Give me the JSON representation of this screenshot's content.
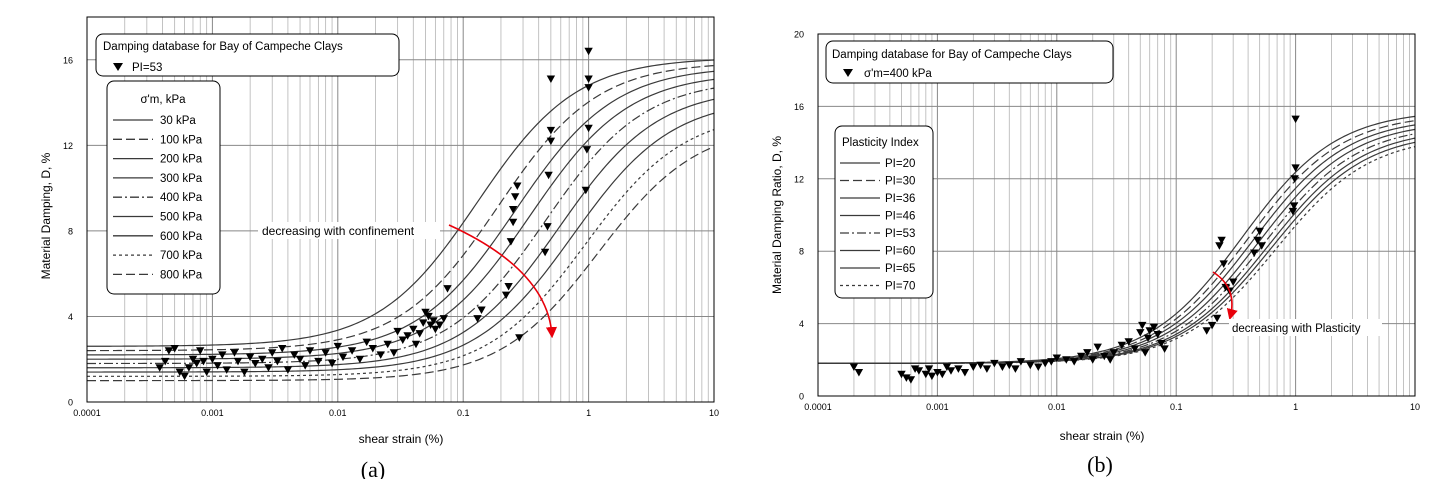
{
  "chart_data": [
    {
      "type": "line",
      "panel_label": "(a)",
      "xlabel": "shear strain (%)",
      "ylabel": "Material Damping, D, %",
      "x_scale": "log",
      "xlim": [
        0.0001,
        10
      ],
      "ylim": [
        0,
        18
      ],
      "x_ticks": [
        0.0001,
        0.001,
        0.01,
        0.1,
        1,
        10
      ],
      "x_tick_labels": [
        "0.0001",
        "0.001",
        "0.01",
        "0.1",
        "1",
        "10"
      ],
      "y_ticks": [
        0,
        4,
        8,
        12,
        16
      ],
      "y_tick_labels": [
        "0",
        "4",
        "8",
        "12",
        "16"
      ],
      "grid": true,
      "legend_title": "Damping database for Bay of Campeche Clays",
      "data_legend": "PI=53",
      "curve_legend_title": "σ'm, kPa",
      "annotation": "decreasing with confinement",
      "series": [
        {
          "name": "30 kPa",
          "dash": "solid",
          "dmin": 2.6,
          "gamma_r": 0.13,
          "dmax": 16.1
        },
        {
          "name": "100 kPa",
          "dash": "long",
          "dmin": 2.4,
          "gamma_r": 0.19,
          "dmax": 15.9
        },
        {
          "name": "200 kPa",
          "dash": "solid",
          "dmin": 2.2,
          "gamma_r": 0.26,
          "dmax": 15.7
        },
        {
          "name": "300 kPa",
          "dash": "solid",
          "dmin": 2.0,
          "gamma_r": 0.34,
          "dmax": 15.4
        },
        {
          "name": "400 kPa",
          "dash": "dashdot",
          "dmin": 1.8,
          "gamma_r": 0.45,
          "dmax": 15.1
        },
        {
          "name": "500 kPa",
          "dash": "solid",
          "dmin": 1.6,
          "gamma_r": 0.58,
          "dmax": 14.7
        },
        {
          "name": "600 kPa",
          "dash": "solid",
          "dmin": 1.4,
          "gamma_r": 0.75,
          "dmax": 14.2
        },
        {
          "name": "700 kPa",
          "dash": "short",
          "dmin": 1.2,
          "gamma_r": 0.95,
          "dmax": 13.6
        },
        {
          "name": "800 kPa",
          "dash": "long",
          "dmin": 1.0,
          "gamma_r": 1.2,
          "dmax": 13.0
        }
      ],
      "points": [
        [
          0.00038,
          1.6
        ],
        [
          0.00042,
          1.9
        ],
        [
          0.00045,
          2.4
        ],
        [
          0.0005,
          2.5
        ],
        [
          0.00055,
          1.4
        ],
        [
          0.0006,
          1.2
        ],
        [
          0.00065,
          1.6
        ],
        [
          0.0007,
          2.0
        ],
        [
          0.00075,
          1.8
        ],
        [
          0.0008,
          2.4
        ],
        [
          0.00085,
          1.9
        ],
        [
          0.0009,
          1.4
        ],
        [
          0.001,
          2.0
        ],
        [
          0.0011,
          1.7
        ],
        [
          0.0012,
          2.2
        ],
        [
          0.0013,
          1.5
        ],
        [
          0.0015,
          2.3
        ],
        [
          0.0016,
          1.9
        ],
        [
          0.0018,
          1.4
        ],
        [
          0.002,
          2.1
        ],
        [
          0.0022,
          1.8
        ],
        [
          0.0025,
          2.0
        ],
        [
          0.0028,
          1.6
        ],
        [
          0.003,
          2.3
        ],
        [
          0.0033,
          1.9
        ],
        [
          0.0036,
          2.5
        ],
        [
          0.004,
          1.5
        ],
        [
          0.0045,
          2.2
        ],
        [
          0.005,
          2.0
        ],
        [
          0.0055,
          1.7
        ],
        [
          0.006,
          2.4
        ],
        [
          0.007,
          1.9
        ],
        [
          0.008,
          2.3
        ],
        [
          0.009,
          1.8
        ],
        [
          0.01,
          2.6
        ],
        [
          0.011,
          2.1
        ],
        [
          0.013,
          2.4
        ],
        [
          0.015,
          2.0
        ],
        [
          0.017,
          2.8
        ],
        [
          0.019,
          2.5
        ],
        [
          0.022,
          2.2
        ],
        [
          0.025,
          2.7
        ],
        [
          0.028,
          2.3
        ],
        [
          0.03,
          3.3
        ],
        [
          0.033,
          2.9
        ],
        [
          0.036,
          3.1
        ],
        [
          0.04,
          3.4
        ],
        [
          0.042,
          2.7
        ],
        [
          0.045,
          3.2
        ],
        [
          0.048,
          3.7
        ],
        [
          0.05,
          4.2
        ],
        [
          0.053,
          4.0
        ],
        [
          0.055,
          3.6
        ],
        [
          0.058,
          3.8
        ],
        [
          0.06,
          3.4
        ],
        [
          0.065,
          3.6
        ],
        [
          0.07,
          3.9
        ],
        [
          0.075,
          5.3
        ],
        [
          0.13,
          3.9
        ],
        [
          0.14,
          4.3
        ],
        [
          0.22,
          5.0
        ],
        [
          0.23,
          5.4
        ],
        [
          0.24,
          7.5
        ],
        [
          0.25,
          8.4
        ],
        [
          0.25,
          9.0
        ],
        [
          0.26,
          9.6
        ],
        [
          0.27,
          10.1
        ],
        [
          0.45,
          7.0
        ],
        [
          0.47,
          8.2
        ],
        [
          0.48,
          10.6
        ],
        [
          0.5,
          12.2
        ],
        [
          0.5,
          12.7
        ],
        [
          0.5,
          15.1
        ],
        [
          0.95,
          9.9
        ],
        [
          0.97,
          11.8
        ],
        [
          1.0,
          12.8
        ],
        [
          1.0,
          14.7
        ],
        [
          1.0,
          15.1
        ],
        [
          1.0,
          16.4
        ],
        [
          0.28,
          3.0
        ]
      ]
    },
    {
      "type": "line",
      "panel_label": "(b)",
      "xlabel": "shear strain (%)",
      "ylabel": "Material Damping Ratio, D, %",
      "x_scale": "log",
      "xlim": [
        0.0001,
        10
      ],
      "ylim": [
        0,
        20
      ],
      "x_ticks": [
        0.0001,
        0.001,
        0.01,
        0.1,
        1,
        10
      ],
      "x_tick_labels": [
        "0.0001",
        "0.001",
        "0.01",
        "0.1",
        "1",
        "10"
      ],
      "y_ticks": [
        0,
        4,
        8,
        12,
        16,
        20
      ],
      "y_tick_labels": [
        "0",
        "4",
        "8",
        "12",
        "16",
        "20"
      ],
      "grid": true,
      "legend_title": "Damping database for Bay of Campeche Clays",
      "data_legend": "σ'm=400 kPa",
      "curve_legend_title": "Plasticity Index",
      "annotation": "decreasing with Plasticity",
      "series": [
        {
          "name": "PI=20",
          "dash": "solid",
          "dmin": 1.8,
          "gamma_r": 0.36,
          "dmax": 15.8
        },
        {
          "name": "PI=30",
          "dash": "long",
          "dmin": 1.8,
          "gamma_r": 0.4,
          "dmax": 15.6
        },
        {
          "name": "PI=36",
          "dash": "solid",
          "dmin": 1.8,
          "gamma_r": 0.44,
          "dmax": 15.4
        },
        {
          "name": "PI=46",
          "dash": "solid",
          "dmin": 1.8,
          "gamma_r": 0.49,
          "dmax": 15.2
        },
        {
          "name": "PI=53",
          "dash": "dashdot",
          "dmin": 1.8,
          "gamma_r": 0.54,
          "dmax": 15.0
        },
        {
          "name": "PI=60",
          "dash": "solid",
          "dmin": 1.8,
          "gamma_r": 0.59,
          "dmax": 14.8
        },
        {
          "name": "PI=65",
          "dash": "solid",
          "dmin": 1.8,
          "gamma_r": 0.63,
          "dmax": 14.6
        },
        {
          "name": "PI=70",
          "dash": "short",
          "dmin": 1.8,
          "gamma_r": 0.68,
          "dmax": 14.4
        }
      ],
      "points": [
        [
          0.0002,
          1.6
        ],
        [
          0.00022,
          1.3
        ],
        [
          0.0005,
          1.2
        ],
        [
          0.00055,
          1.0
        ],
        [
          0.0006,
          0.9
        ],
        [
          0.00065,
          1.5
        ],
        [
          0.0007,
          1.4
        ],
        [
          0.0008,
          1.2
        ],
        [
          0.00085,
          1.5
        ],
        [
          0.0009,
          1.1
        ],
        [
          0.001,
          1.3
        ],
        [
          0.0011,
          1.2
        ],
        [
          0.0012,
          1.6
        ],
        [
          0.0013,
          1.4
        ],
        [
          0.0015,
          1.5
        ],
        [
          0.0017,
          1.3
        ],
        [
          0.002,
          1.6
        ],
        [
          0.0023,
          1.7
        ],
        [
          0.0026,
          1.5
        ],
        [
          0.003,
          1.8
        ],
        [
          0.0035,
          1.6
        ],
        [
          0.004,
          1.7
        ],
        [
          0.0045,
          1.5
        ],
        [
          0.005,
          1.9
        ],
        [
          0.006,
          1.7
        ],
        [
          0.007,
          1.6
        ],
        [
          0.008,
          1.8
        ],
        [
          0.009,
          1.9
        ],
        [
          0.01,
          2.1
        ],
        [
          0.012,
          2.0
        ],
        [
          0.014,
          1.9
        ],
        [
          0.016,
          2.2
        ],
        [
          0.018,
          2.4
        ],
        [
          0.02,
          2.0
        ],
        [
          0.022,
          2.7
        ],
        [
          0.025,
          2.2
        ],
        [
          0.028,
          2.0
        ],
        [
          0.03,
          2.4
        ],
        [
          0.035,
          2.8
        ],
        [
          0.04,
          3.0
        ],
        [
          0.045,
          2.6
        ],
        [
          0.05,
          3.5
        ],
        [
          0.052,
          3.9
        ],
        [
          0.055,
          2.4
        ],
        [
          0.058,
          3.2
        ],
        [
          0.06,
          3.6
        ],
        [
          0.065,
          3.8
        ],
        [
          0.07,
          3.4
        ],
        [
          0.075,
          2.9
        ],
        [
          0.08,
          2.6
        ],
        [
          0.18,
          3.6
        ],
        [
          0.2,
          3.9
        ],
        [
          0.22,
          4.3
        ],
        [
          0.23,
          8.3
        ],
        [
          0.24,
          8.6
        ],
        [
          0.25,
          7.3
        ],
        [
          0.26,
          6.0
        ],
        [
          0.28,
          5.8
        ],
        [
          0.3,
          6.3
        ],
        [
          0.45,
          7.9
        ],
        [
          0.48,
          8.6
        ],
        [
          0.5,
          9.1
        ],
        [
          0.52,
          8.3
        ],
        [
          0.95,
          10.2
        ],
        [
          0.97,
          10.5
        ],
        [
          1.0,
          12.6
        ],
        [
          1.0,
          15.3
        ],
        [
          0.98,
          12.0
        ]
      ]
    }
  ],
  "colors": {
    "axis": "#000000",
    "grid": "#b4b4b4",
    "annotation_arrow": "#e8000b",
    "curve": "#3a3a3a"
  }
}
